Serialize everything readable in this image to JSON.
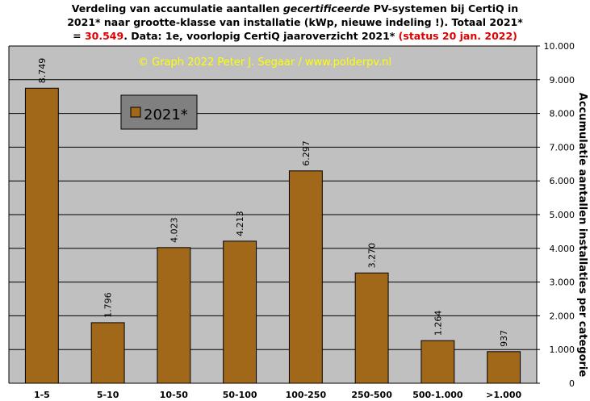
{
  "chart_data": {
    "type": "bar",
    "title": {
      "line1_a": "Verdeling van accumulatie aantallen ",
      "line1_italic": "gecertificeerde",
      "line1_b": " PV-systemen bij CertiQ in",
      "line2": "2021* naar grootte-klasse van installatie (kWp, nieuwe indeling !). Totaal 2021*",
      "line3_a": "= ",
      "line3_total": "30.549",
      "line3_b": ". Data: 1e, voorlopig CertiQ jaaroverzicht 2021* ",
      "line3_status": "(status 20 jan. 2022)"
    },
    "watermark": "© Graph 2022 Peter J. Segaar / www.polderpv.nl",
    "ylabel": "Accumulatie aantallen installaties per categorie",
    "xlabel": "",
    "ylim": [
      0,
      10000
    ],
    "ytick_values": [
      0,
      1000,
      2000,
      3000,
      4000,
      5000,
      6000,
      7000,
      8000,
      9000,
      10000
    ],
    "ytick_labels": [
      "0",
      "1.000",
      "2.000",
      "3.000",
      "4.000",
      "5.000",
      "6.000",
      "7.000",
      "8.000",
      "9.000",
      "10.000"
    ],
    "y_axis_position": "right",
    "grid": "horizontal",
    "legend_position": "top-left",
    "categories": [
      "1-5",
      "5-10",
      "10-50",
      "50-100",
      "100-250",
      "250-500",
      "500-1.000",
      ">1.000"
    ],
    "series": [
      {
        "name": "2021*",
        "values": [
          8749,
          1796,
          4023,
          4213,
          6297,
          3270,
          1264,
          937
        ],
        "value_labels": [
          "8.749",
          "1.796",
          "4.023",
          "4.213",
          "6.297",
          "3.270",
          "1.264",
          "937"
        ],
        "color": "#a06818"
      }
    ],
    "colors": {
      "plot_background": "#c0c0c0",
      "grid": "#000000",
      "watermark": "#ffff00",
      "title_highlight": "#e00000",
      "legend_background": "#808080"
    }
  }
}
